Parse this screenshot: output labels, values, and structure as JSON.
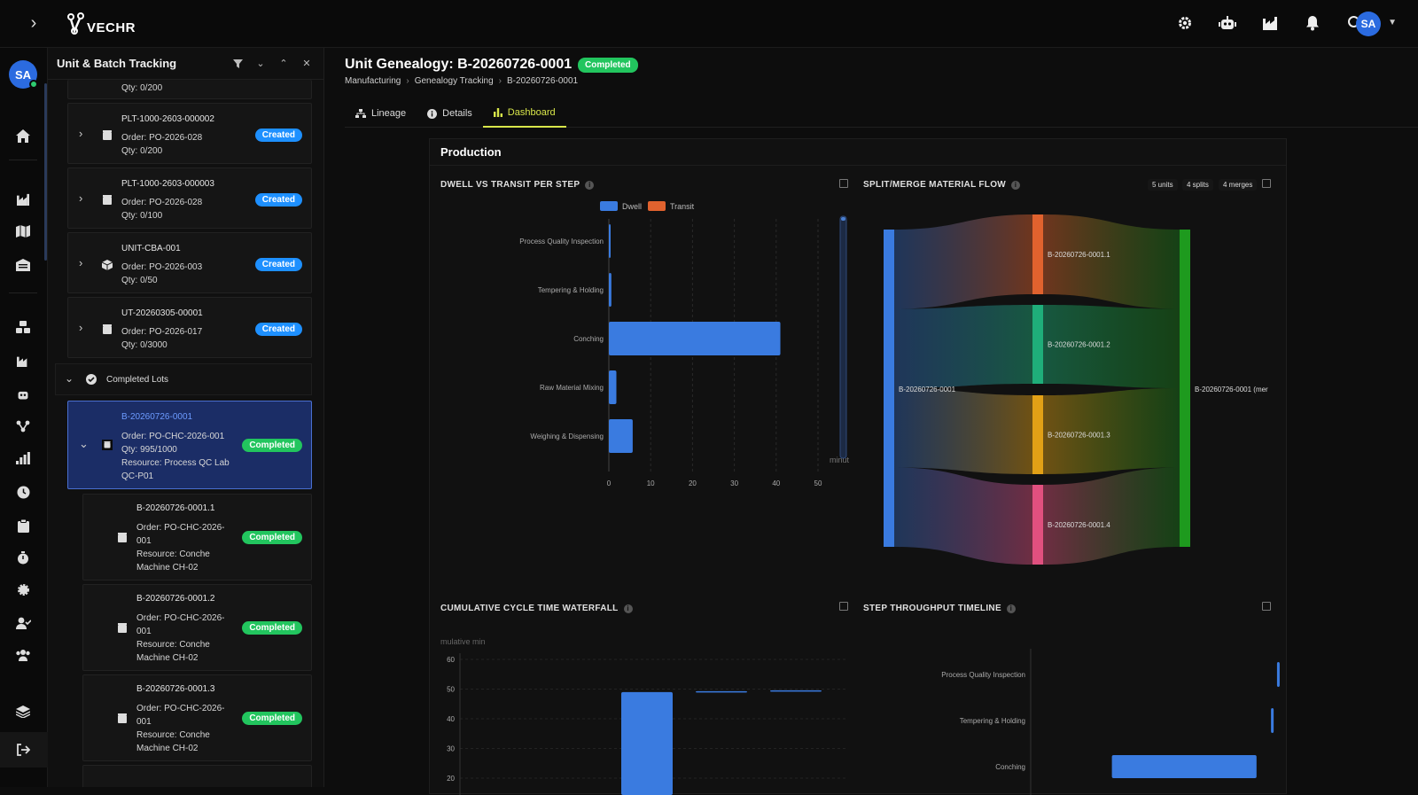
{
  "app": {
    "logo_text": "VECHR",
    "user_initials": "SA"
  },
  "panel": {
    "title": "Unit & Batch Tracking",
    "partial_top_qty": "Qty: 0/200",
    "lots": [
      {
        "name": "PLT-1000-2603-000002",
        "order": "Order: PO-2026-028",
        "qty": "Qty: 0/200",
        "status": "Created"
      },
      {
        "name": "PLT-1000-2603-000003",
        "order": "Order: PO-2026-028",
        "qty": "Qty: 0/100",
        "status": "Created"
      },
      {
        "name": "UNIT-CBA-001",
        "order": "Order: PO-2026-003",
        "qty": "Qty: 0/50",
        "status": "Created"
      },
      {
        "name": "UT-20260305-00001",
        "order": "Order: PO-2026-017",
        "qty": "Qty: 0/3000",
        "status": "Created"
      }
    ],
    "group_label": "Completed Lots",
    "selected": {
      "name": "B-20260726-0001",
      "order": "Order: PO-CHC-2026-001",
      "qty": "Qty: 995/1000",
      "resource1": "Resource: Process QC Lab",
      "resource2": "QC-P01",
      "status": "Completed"
    },
    "children": [
      {
        "name": "B-20260726-0001.1",
        "order1": "Order: PO-CHC-2026-",
        "order2": "001",
        "res1": "Resource: Conche",
        "res2": "Machine CH-02",
        "status": "Completed"
      },
      {
        "name": "B-20260726-0001.2",
        "order1": "Order: PO-CHC-2026-",
        "order2": "001",
        "res1": "Resource: Conche",
        "res2": "Machine CH-02",
        "status": "Completed"
      },
      {
        "name": "B-20260726-0001.3",
        "order1": "Order: PO-CHC-2026-",
        "order2": "001",
        "res1": "Resource: Conche",
        "res2": "Machine CH-02",
        "status": "Completed"
      }
    ]
  },
  "header": {
    "title": "Unit Genealogy: B-20260726-0001",
    "status": "Completed",
    "breadcrumb": [
      "Manufacturing",
      "Genealogy Tracking",
      "B-20260726-0001"
    ],
    "tabs": [
      "Lineage",
      "Details",
      "Dashboard"
    ]
  },
  "card": {
    "title": "Production"
  },
  "sections": {
    "dwell": "DWELL VS TRANSIT PER STEP",
    "flow": "SPLIT/MERGE MATERIAL FLOW",
    "flow_chips": [
      "5 units",
      "4 splits",
      "4 merges"
    ],
    "waterfall": "CUMULATIVE CYCLE TIME WATERFALL",
    "throughput": "STEP THROUGHPUT TIMELINE"
  },
  "chart_data": [
    {
      "type": "bar",
      "title": "DWELL VS TRANSIT PER STEP",
      "orientation": "horizontal",
      "categories": [
        "Process Quality Inspection",
        "Tempering & Holding",
        "Conching",
        "Raw Material Mixing",
        "Weighing & Dispensing"
      ],
      "series": [
        {
          "name": "Dwell",
          "values": [
            0.3,
            0.6,
            41,
            1.8,
            5.7
          ],
          "color": "#3a7be0"
        },
        {
          "name": "Transit",
          "values": [
            0,
            0,
            0,
            0,
            0
          ],
          "color": "#e0622e"
        }
      ],
      "xticks": [
        "0",
        "10",
        "20",
        "30",
        "40",
        "50"
      ],
      "xlabel_fragment": "minut",
      "xlim": [
        0,
        50
      ],
      "legend": "top"
    },
    {
      "type": "sankey",
      "title": "SPLIT/MERGE MATERIAL FLOW",
      "source": "B-20260726-0001",
      "splits": [
        "B-20260726-0001.1",
        "B-20260726-0001.2",
        "B-20260726-0001.3",
        "B-20260726-0001.4"
      ],
      "target": "B-20260726-0001 (mer",
      "colors": {
        "source": "#3a7be0",
        "splits": [
          "#e0622e",
          "#1fae7a",
          "#e2a016",
          "#e0507f"
        ],
        "target": "#1e9a1e"
      }
    },
    {
      "type": "bar",
      "title": "CUMULATIVE CYCLE TIME WATERFALL",
      "ylabel_fragment": "mulative min",
      "yticks": [
        "60",
        "50",
        "40",
        "30",
        "20"
      ],
      "ylim": [
        20,
        60
      ],
      "bars": [
        {
          "start": 0,
          "end": 49
        },
        {
          "start": 49,
          "end": 49.3
        },
        {
          "start": 49.3,
          "end": 49.6
        }
      ]
    },
    {
      "type": "timeline",
      "title": "STEP THROUGHPUT TIMELINE",
      "categories": [
        "Process Quality Inspection",
        "Tempering & Holding",
        "Conching"
      ],
      "intervals": [
        [
          0.985,
          0.99
        ],
        [
          0.96,
          0.97
        ],
        [
          0.3,
          0.9
        ]
      ]
    }
  ]
}
